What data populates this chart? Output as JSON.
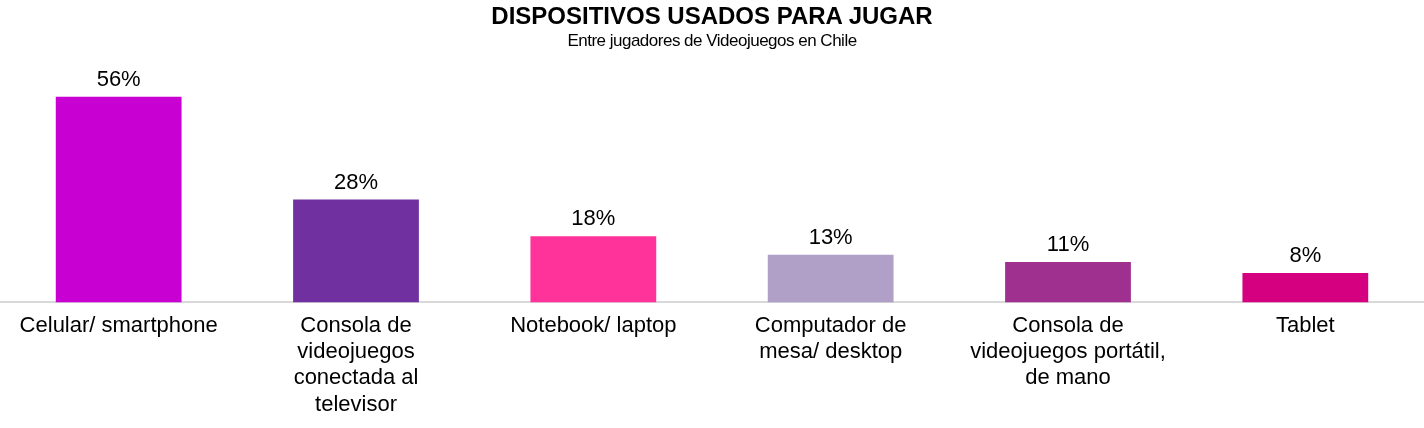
{
  "chart_data": {
    "type": "bar",
    "title": "DISPOSITIVOS USADOS PARA JUGAR",
    "subtitle": "Entre jugadores de Videojuegos en Chile",
    "categories": [
      "Celular/ smartphone",
      "Consola de videojuegos conectada al televisor",
      "Notebook/ laptop",
      "Computador de mesa/ desktop",
      "Consola de videojuegos portátil, de mano",
      "Tablet"
    ],
    "values": [
      56,
      28,
      18,
      13,
      11,
      8
    ],
    "value_labels": [
      "56%",
      "28%",
      "18%",
      "13%",
      "11%",
      "8%"
    ],
    "colors": [
      "#c800d2",
      "#7030a0",
      "#ff3399",
      "#b0a0c8",
      "#a03090",
      "#d4007f"
    ],
    "grid": false,
    "legend": false
  }
}
